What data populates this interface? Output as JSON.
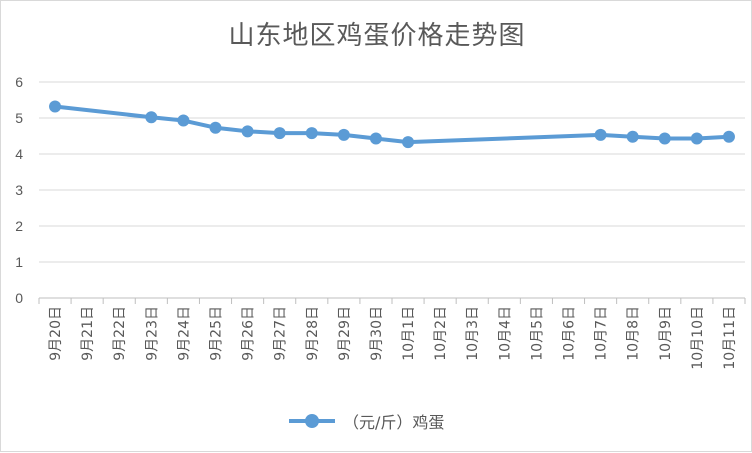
{
  "chart_data": {
    "type": "line",
    "title": "山东地区鸡蛋价格走势图",
    "categories": [
      "9月20日",
      "9月21日",
      "9月22日",
      "9月23日",
      "9月24日",
      "9月25日",
      "9月26日",
      "9月27日",
      "9月28日",
      "9月29日",
      "9月30日",
      "10月1日",
      "10月2日",
      "10月3日",
      "10月4日",
      "10月5日",
      "10月6日",
      "10月7日",
      "10月8日",
      "10月9日",
      "10月10日",
      "10月11日"
    ],
    "series": [
      {
        "name": "（元/斤）鸡蛋",
        "color": "#5b9bd5",
        "values": [
          5.32,
          null,
          null,
          5.02,
          4.93,
          4.73,
          4.63,
          4.58,
          4.58,
          4.53,
          4.43,
          4.33,
          null,
          null,
          null,
          null,
          null,
          4.53,
          4.48,
          4.43,
          4.43,
          4.48
        ]
      }
    ],
    "ylim": [
      0,
      6
    ],
    "yticks": [
      "0",
      "1",
      "2",
      "3",
      "4",
      "5",
      "6"
    ],
    "grid": true,
    "legend": "bottom",
    "xlabel": "",
    "ylabel": ""
  }
}
